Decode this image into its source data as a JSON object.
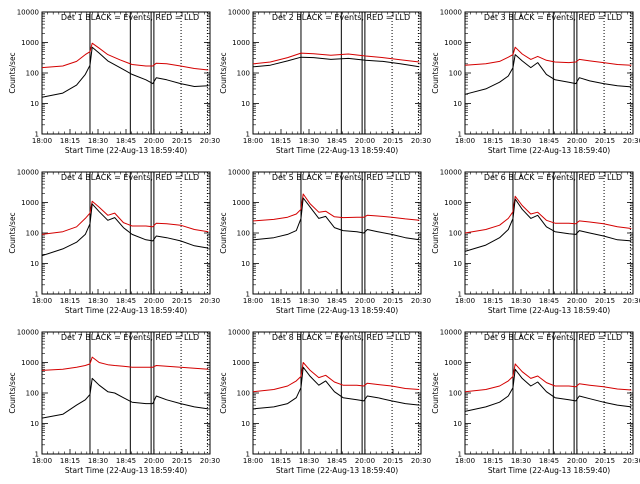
{
  "chart_data": [
    {
      "type": "line",
      "title": "Det 1   BLACK = Events, RED = LLD",
      "xlabel": "Start Time (22-Aug-13 18:59:40)",
      "ylabel": "Counts/sec",
      "x_tick_labels": [
        "18:00",
        "18:15",
        "18:30",
        "18:45",
        "20:00",
        "20:15",
        "20:30"
      ],
      "y_tick_labels": [
        "1",
        "10",
        "100",
        "1000",
        "10000"
      ],
      "xlim": [
        0,
        97
      ],
      "ylim": [
        1,
        10000
      ],
      "y_scale": "log",
      "vlines_solid": [
        27.7,
        51.0,
        63.0,
        64.6
      ],
      "vlines_dotted": [
        80.3,
        95.5
      ],
      "series": [
        {
          "color": "#000000",
          "x": [
            0,
            12,
            20,
            25,
            27.7,
            29,
            33,
            38,
            45,
            52,
            60,
            64,
            66,
            72,
            80,
            88,
            96
          ],
          "y": [
            16,
            22,
            40,
            90,
            180,
            700,
            450,
            250,
            150,
            90,
            60,
            45,
            70,
            60,
            45,
            36,
            38
          ]
        },
        {
          "color": "#d40000",
          "x": [
            0,
            12,
            20,
            25,
            27.7,
            29,
            33,
            38,
            45,
            52,
            60,
            64,
            66,
            72,
            80,
            88,
            96
          ],
          "y": [
            150,
            170,
            240,
            400,
            500,
            950,
            650,
            400,
            270,
            190,
            170,
            170,
            210,
            200,
            170,
            140,
            125
          ]
        }
      ]
    },
    {
      "type": "line",
      "title": "Det 2   BLACK = Events, RED = LLD",
      "xlabel": "Start Time (22-Aug-13 18:59:40)",
      "ylabel": "Counts/sec",
      "x_tick_labels": [
        "18:00",
        "18:15",
        "18:30",
        "18:45",
        "20:00",
        "20:15",
        "20:30"
      ],
      "y_tick_labels": [
        "1",
        "10",
        "100",
        "1000",
        "10000"
      ],
      "xlim": [
        0,
        97
      ],
      "ylim": [
        1,
        10000
      ],
      "y_scale": "log",
      "vlines_solid": [
        27.7,
        51.0,
        63.0,
        64.6
      ],
      "vlines_dotted": [
        80.3,
        95.5
      ],
      "series": [
        {
          "color": "#000000",
          "x": [
            0,
            10,
            20,
            27.7,
            35,
            45,
            55,
            65,
            75,
            85,
            96
          ],
          "y": [
            160,
            180,
            250,
            330,
            320,
            280,
            300,
            260,
            240,
            200,
            160
          ]
        },
        {
          "color": "#d40000",
          "x": [
            0,
            10,
            20,
            27.7,
            35,
            45,
            55,
            65,
            75,
            85,
            96
          ],
          "y": [
            200,
            230,
            320,
            450,
            430,
            380,
            420,
            360,
            320,
            270,
            230
          ]
        }
      ]
    },
    {
      "type": "line",
      "title": "Det 3   BLACK = Events, RED = LLD",
      "xlabel": "Start Time (22-Aug-13 18:59:40)",
      "ylabel": "Counts/sec",
      "x_tick_labels": [
        "18:00",
        "18:15",
        "18:30",
        "18:45",
        "20:00",
        "20:15",
        "20:30"
      ],
      "y_tick_labels": [
        "1",
        "10",
        "100",
        "1000",
        "10000"
      ],
      "xlim": [
        0,
        97
      ],
      "ylim": [
        1,
        10000
      ],
      "y_scale": "log",
      "vlines_solid": [
        27.7,
        51.0,
        63.0,
        64.6
      ],
      "vlines_dotted": [
        80.3,
        95.5
      ],
      "series": [
        {
          "color": "#000000",
          "x": [
            0,
            12,
            20,
            25,
            27.7,
            29,
            33,
            38,
            42,
            47,
            52,
            60,
            64,
            66,
            72,
            80,
            88,
            96
          ],
          "y": [
            20,
            30,
            50,
            80,
            150,
            400,
            250,
            150,
            220,
            90,
            60,
            50,
            45,
            70,
            55,
            45,
            38,
            35
          ]
        },
        {
          "color": "#d40000",
          "x": [
            0,
            12,
            20,
            25,
            27.7,
            29,
            33,
            38,
            42,
            47,
            52,
            60,
            64,
            66,
            72,
            80,
            88,
            96
          ],
          "y": [
            180,
            200,
            240,
            330,
            400,
            700,
            420,
            280,
            350,
            260,
            230,
            220,
            230,
            280,
            250,
            220,
            190,
            180
          ]
        }
      ]
    },
    {
      "type": "line",
      "title": "Det 4   BLACK = Events, RED = LLD",
      "xlabel": "Start Time (22-Aug-13 18:59:40)",
      "ylabel": "Counts/sec",
      "x_tick_labels": [
        "18:00",
        "18:15",
        "18:30",
        "18:45",
        "20:00",
        "20:15",
        "20:30"
      ],
      "y_tick_labels": [
        "1",
        "10",
        "100",
        "1000",
        "10000"
      ],
      "xlim": [
        0,
        97
      ],
      "ylim": [
        1,
        10000
      ],
      "y_scale": "log",
      "vlines_solid": [
        27.7,
        51.0,
        63.0,
        64.6
      ],
      "vlines_dotted": [
        80.3,
        95.5
      ],
      "series": [
        {
          "color": "#000000",
          "x": [
            0,
            12,
            20,
            25,
            27.7,
            29,
            33,
            38,
            42,
            47,
            52,
            60,
            64,
            66,
            72,
            80,
            88,
            96
          ],
          "y": [
            18,
            30,
            50,
            90,
            200,
            900,
            500,
            260,
            320,
            150,
            90,
            60,
            55,
            80,
            70,
            55,
            38,
            32
          ]
        },
        {
          "color": "#d40000",
          "x": [
            0,
            12,
            20,
            25,
            27.7,
            29,
            33,
            38,
            42,
            47,
            52,
            60,
            64,
            66,
            72,
            80,
            88,
            96
          ],
          "y": [
            90,
            110,
            160,
            300,
            450,
            1100,
            700,
            380,
            450,
            220,
            170,
            170,
            160,
            210,
            200,
            180,
            130,
            110
          ]
        }
      ]
    },
    {
      "type": "line",
      "title": "Det 5   BLACK = Events, RED = LLD",
      "xlabel": "Start Time (22-Aug-13 18:59:40)",
      "ylabel": "Counts/sec",
      "x_tick_labels": [
        "18:00",
        "18:15",
        "18:30",
        "18:45",
        "20:00",
        "20:15",
        "20:30"
      ],
      "y_tick_labels": [
        "1",
        "10",
        "100",
        "1000",
        "10000"
      ],
      "xlim": [
        0,
        97
      ],
      "ylim": [
        1,
        10000
      ],
      "y_scale": "log",
      "vlines_solid": [
        27.7,
        51.0,
        63.0,
        64.6
      ],
      "vlines_dotted": [
        80.3,
        95.5
      ],
      "series": [
        {
          "color": "#000000",
          "x": [
            0,
            12,
            20,
            25,
            27.7,
            29,
            33,
            38,
            42,
            47,
            52,
            60,
            64,
            66,
            72,
            80,
            88,
            96
          ],
          "y": [
            60,
            70,
            90,
            120,
            300,
            1400,
            700,
            300,
            350,
            150,
            120,
            110,
            100,
            130,
            110,
            90,
            70,
            60
          ]
        },
        {
          "color": "#d40000",
          "x": [
            0,
            12,
            20,
            25,
            27.7,
            29,
            33,
            38,
            42,
            47,
            52,
            60,
            64,
            66,
            72,
            80,
            88,
            96
          ],
          "y": [
            250,
            280,
            330,
            420,
            600,
            1900,
            900,
            480,
            520,
            340,
            320,
            330,
            330,
            380,
            360,
            330,
            290,
            260
          ]
        }
      ]
    },
    {
      "type": "line",
      "title": "Det 6   BLACK = Events, RED = LLD",
      "xlabel": "Start Time (22-Aug-13 18:59:40)",
      "ylabel": "Counts/sec",
      "x_tick_labels": [
        "18:00",
        "18:15",
        "18:30",
        "18:45",
        "20:00",
        "20:15",
        "20:30"
      ],
      "y_tick_labels": [
        "1",
        "10",
        "100",
        "1000",
        "10000"
      ],
      "xlim": [
        0,
        97
      ],
      "ylim": [
        1,
        10000
      ],
      "y_scale": "log",
      "vlines_solid": [
        27.7,
        51.0,
        63.0,
        64.6
      ],
      "vlines_dotted": [
        80.3,
        95.5
      ],
      "series": [
        {
          "color": "#000000",
          "x": [
            0,
            12,
            20,
            25,
            27.7,
            29,
            33,
            38,
            42,
            47,
            52,
            60,
            64,
            66,
            72,
            80,
            88,
            96
          ],
          "y": [
            25,
            40,
            70,
            130,
            300,
            1300,
            600,
            300,
            380,
            160,
            110,
            95,
            90,
            120,
            100,
            80,
            60,
            55
          ]
        },
        {
          "color": "#d40000",
          "x": [
            0,
            12,
            20,
            25,
            27.7,
            29,
            33,
            38,
            42,
            47,
            52,
            60,
            64,
            66,
            72,
            80,
            88,
            96
          ],
          "y": [
            100,
            130,
            180,
            300,
            500,
            1600,
            800,
            420,
            480,
            260,
            210,
            210,
            200,
            250,
            230,
            200,
            160,
            140
          ]
        }
      ]
    },
    {
      "type": "line",
      "title": "Det 7   BLACK = Events, RED = LLD",
      "xlabel": "Start Time (22-Aug-13 18:59:40)",
      "ylabel": "Counts/sec",
      "x_tick_labels": [
        "18:00",
        "18:15",
        "18:30",
        "18:45",
        "20:00",
        "20:15",
        "20:30"
      ],
      "y_tick_labels": [
        "1",
        "10",
        "100",
        "1000",
        "10000"
      ],
      "xlim": [
        0,
        97
      ],
      "ylim": [
        1,
        10000
      ],
      "y_scale": "log",
      "vlines_solid": [
        27.7,
        51.0,
        63.0,
        64.6
      ],
      "vlines_dotted": [
        80.3,
        95.5
      ],
      "series": [
        {
          "color": "#000000",
          "x": [
            0,
            12,
            20,
            25,
            27.7,
            29,
            33,
            38,
            42,
            47,
            52,
            60,
            64,
            66,
            72,
            80,
            88,
            96
          ],
          "y": [
            15,
            20,
            40,
            60,
            90,
            300,
            180,
            110,
            100,
            70,
            50,
            45,
            45,
            80,
            60,
            45,
            35,
            30
          ]
        },
        {
          "color": "#d40000",
          "x": [
            0,
            12,
            20,
            25,
            27.7,
            29,
            33,
            38,
            42,
            47,
            52,
            60,
            64,
            66,
            72,
            80,
            88,
            96
          ],
          "y": [
            550,
            600,
            700,
            800,
            900,
            1500,
            1000,
            850,
            800,
            750,
            700,
            700,
            700,
            800,
            750,
            700,
            650,
            600
          ]
        }
      ]
    },
    {
      "type": "line",
      "title": "Det 8   BLACK = Events, RED = LLD",
      "xlabel": "Start Time (22-Aug-13 18:59:40)",
      "ylabel": "Counts/sec",
      "x_tick_labels": [
        "18:00",
        "18:15",
        "18:30",
        "18:45",
        "20:00",
        "20:15",
        "20:30"
      ],
      "y_tick_labels": [
        "1",
        "10",
        "100",
        "1000",
        "10000"
      ],
      "xlim": [
        0,
        97
      ],
      "ylim": [
        1,
        10000
      ],
      "y_scale": "log",
      "vlines_solid": [
        27.7,
        51.0,
        63.0,
        64.6
      ],
      "vlines_dotted": [
        80.3,
        95.5
      ],
      "series": [
        {
          "color": "#000000",
          "x": [
            0,
            12,
            20,
            25,
            27.7,
            29,
            33,
            38,
            42,
            47,
            52,
            60,
            64,
            66,
            72,
            80,
            88,
            96
          ],
          "y": [
            30,
            35,
            45,
            70,
            150,
            700,
            350,
            180,
            250,
            110,
            70,
            60,
            55,
            80,
            70,
            55,
            45,
            40
          ]
        },
        {
          "color": "#d40000",
          "x": [
            0,
            12,
            20,
            25,
            27.7,
            29,
            33,
            38,
            42,
            47,
            52,
            60,
            64,
            66,
            72,
            80,
            88,
            96
          ],
          "y": [
            110,
            130,
            170,
            250,
            350,
            1000,
            550,
            320,
            380,
            230,
            180,
            180,
            170,
            210,
            190,
            170,
            140,
            130
          ]
        }
      ]
    },
    {
      "type": "line",
      "title": "Det 9   BLACK = Events, RED = LLD",
      "xlabel": "Start Time (22-Aug-13 18:59:40)",
      "ylabel": "Counts/sec",
      "x_tick_labels": [
        "18:00",
        "18:15",
        "18:30",
        "18:45",
        "20:00",
        "20:15",
        "20:30"
      ],
      "y_tick_labels": [
        "1",
        "10",
        "100",
        "1000",
        "10000"
      ],
      "xlim": [
        0,
        97
      ],
      "ylim": [
        1,
        10000
      ],
      "y_scale": "log",
      "vlines_solid": [
        27.7,
        51.0,
        63.0,
        64.6
      ],
      "vlines_dotted": [
        80.3,
        95.5
      ],
      "series": [
        {
          "color": "#000000",
          "x": [
            0,
            12,
            20,
            25,
            27.7,
            29,
            33,
            38,
            42,
            47,
            52,
            60,
            64,
            66,
            72,
            80,
            88,
            96
          ],
          "y": [
            25,
            35,
            50,
            80,
            150,
            600,
            300,
            170,
            230,
            110,
            70,
            60,
            55,
            80,
            65,
            50,
            40,
            35
          ]
        },
        {
          "color": "#d40000",
          "x": [
            0,
            12,
            20,
            25,
            27.7,
            29,
            33,
            38,
            42,
            47,
            52,
            60,
            64,
            66,
            72,
            80,
            88,
            96
          ],
          "y": [
            110,
            130,
            170,
            250,
            350,
            900,
            500,
            300,
            360,
            220,
            170,
            170,
            160,
            200,
            180,
            160,
            135,
            125
          ]
        }
      ]
    }
  ]
}
